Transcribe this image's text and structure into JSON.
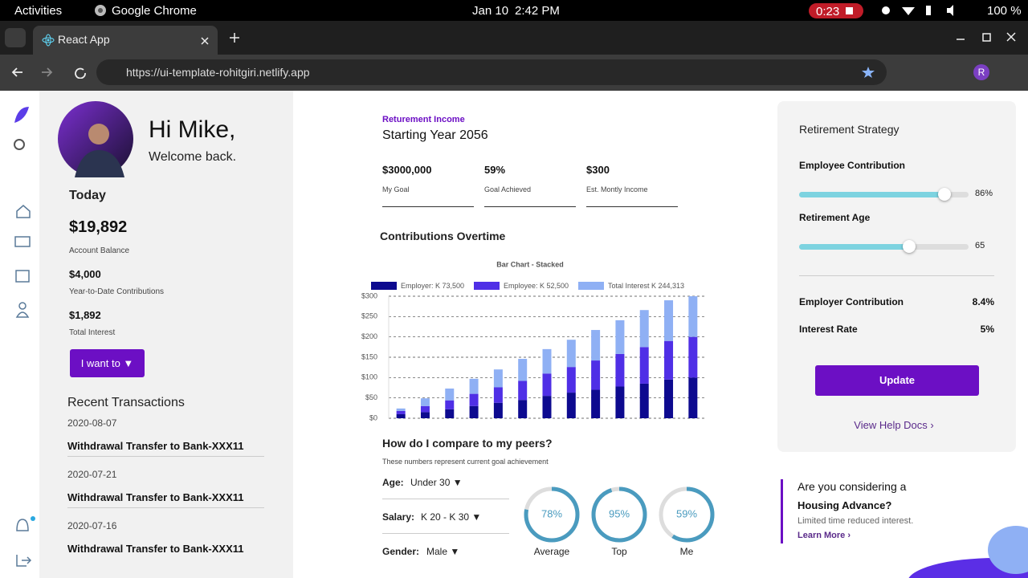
{
  "system_bar": {
    "activities": "Activities",
    "app": "Google Chrome",
    "date": "Jan 10",
    "time": "2:42 PM",
    "recording": "0:23",
    "battery": "100 %"
  },
  "browser": {
    "tab": "React App",
    "url": "https://ui-template-rohitgiri.netlify.app",
    "profile_initial": "R"
  },
  "profile": {
    "greeting": "Hi Mike,",
    "welcome": "Welcome back.",
    "today": "Today",
    "balance": "$19,892",
    "balance_label": "Account Balance",
    "ytd": "$4,000",
    "ytd_label": "Year-to-Date Contributions",
    "interest": "$1,892",
    "interest_label": "Total Interest",
    "button": "I want to ▼"
  },
  "transactions": {
    "title": "Recent Transactions",
    "items": [
      {
        "date": "2020-08-07",
        "description": "Withdrawal Transfer to Bank-XXX11"
      },
      {
        "date": "2020-07-21",
        "description": "Withdrawal Transfer to Bank-XXX11"
      },
      {
        "date": "2020-07-16",
        "description": "Withdrawal Transfer to Bank-XXX11"
      }
    ]
  },
  "income": {
    "label": "Returement Income",
    "title": "Starting Year 2056",
    "stats": [
      {
        "value": "$3000,000",
        "label": "My Goal"
      },
      {
        "value": "59%",
        "label": "Goal Achieved"
      },
      {
        "value": "$300",
        "label": "Est. Montly Income"
      }
    ]
  },
  "contributions_title": "Contributions Overtime",
  "chart_data": {
    "type": "bar",
    "stacked": true,
    "title": "Bar Chart - Stacked",
    "categories": [
      null,
      null,
      null,
      null,
      null,
      null,
      null,
      null,
      null,
      null,
      null,
      null,
      null
    ],
    "series": [
      {
        "name": "Employer: K 73,500",
        "color": "#0d0a8f",
        "values": [
          10,
          15,
          22,
          30,
          38,
          45,
          55,
          63,
          70,
          78,
          85,
          95,
          100
        ]
      },
      {
        "name": "Employee: K 52,500",
        "color": "#4f2fe6",
        "values": [
          8,
          15,
          22,
          30,
          38,
          47,
          55,
          63,
          72,
          80,
          90,
          95,
          100
        ]
      },
      {
        "name": "Total Interest K 244,313",
        "color": "#8fb0f4",
        "values": [
          6,
          19,
          29,
          37,
          44,
          54,
          60,
          67,
          75,
          83,
          91,
          100,
          100
        ]
      }
    ],
    "ylim": [
      0,
      300
    ],
    "yticks": [
      {
        "value": 0,
        "label": "$0"
      },
      {
        "value": 50,
        "label": "$50"
      },
      {
        "value": 100,
        "label": "$100"
      },
      {
        "value": 150,
        "label": "$150"
      },
      {
        "value": 200,
        "label": "$200"
      },
      {
        "value": 250,
        "label": "$250"
      },
      {
        "value": 300,
        "label": "$300"
      }
    ],
    "grid": true
  },
  "peers": {
    "title": "How do I compare to my peers?",
    "subtitle": "These numbers represent current goal achievement",
    "filters": [
      {
        "label": "Age:",
        "value": "Under 30 ▼"
      },
      {
        "label": "Salary:",
        "value": "K 20 - K 30 ▼"
      },
      {
        "label": "Gender:",
        "value": "Male ▼"
      }
    ],
    "gauges": [
      {
        "value": 78,
        "value_label": "78%",
        "label": "Average"
      },
      {
        "value": 95,
        "value_label": "95%",
        "label": "Top"
      },
      {
        "value": 59,
        "value_label": "59%",
        "label": "Me"
      }
    ]
  },
  "strategy": {
    "title": "Retirement Strategy",
    "sliders": [
      {
        "label": "Employee Contribution",
        "value": 86,
        "value_label": "86%"
      },
      {
        "label": "Retirement Age",
        "value": 65
      }
    ],
    "rates": [
      {
        "label": "Employer Contribution",
        "value": "8.4%"
      },
      {
        "label": "Interest Rate",
        "value": "5%"
      }
    ],
    "button": "Update",
    "link": "View Help Docs ›"
  },
  "promo": {
    "title": "Are you considering a",
    "title2": "Housing Advance?",
    "text": "Limited time reduced interest.",
    "link": "Learn More ›"
  }
}
